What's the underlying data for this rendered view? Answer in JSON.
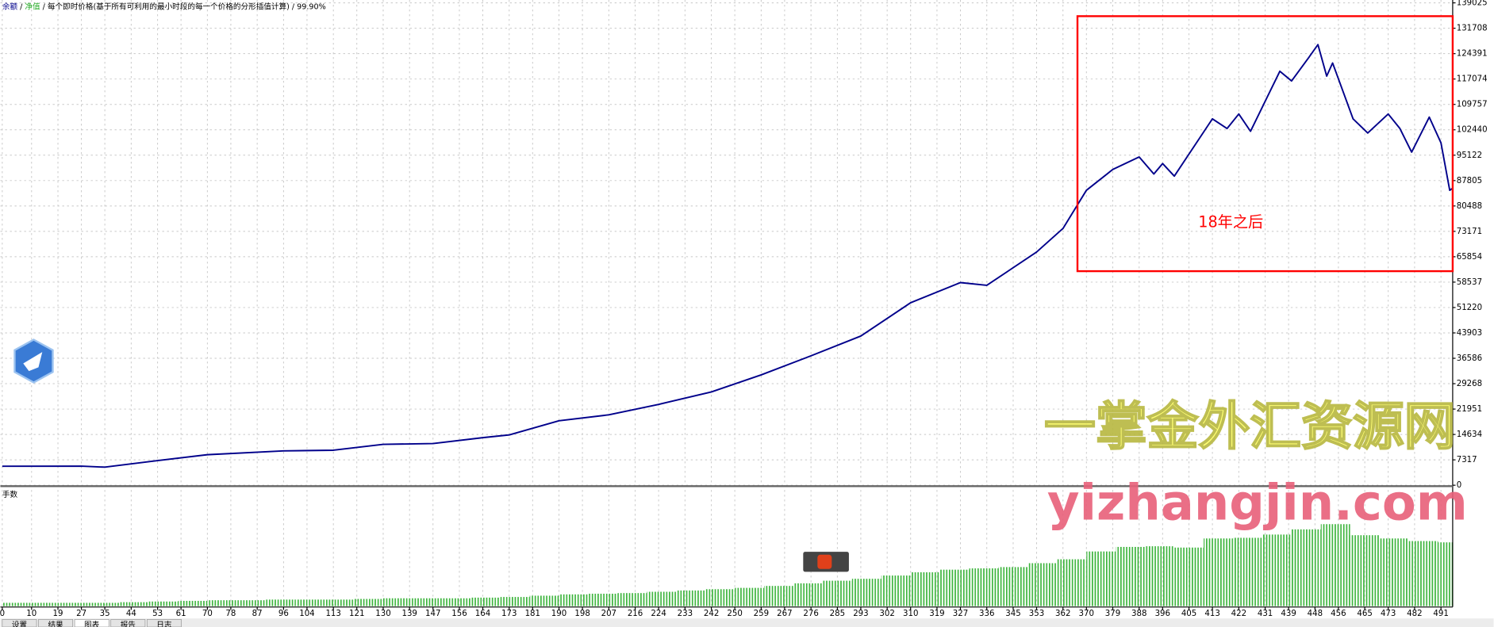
{
  "header": {
    "labels": [
      "余额",
      "净值"
    ],
    "separator": " / ",
    "subtitle": "每个即时价格(基于所有可利用的最小时段的每一个价格的分形插值计算)",
    "quality": "99.90%"
  },
  "watermark": [
    "一掌金外汇资源网",
    "yizhangjin.com"
  ],
  "tabs": [
    "设置",
    "结果",
    "图表",
    "报告",
    "日志"
  ],
  "chart_data": [
    {
      "type": "line",
      "series": [
        {
          "name": "余额",
          "color": "#00008b",
          "x": [
            0,
            27,
            35,
            53,
            70,
            96,
            113,
            130,
            147,
            164,
            173,
            190,
            207,
            224,
            242,
            259,
            276,
            293,
            310,
            327,
            336,
            353,
            362,
            370,
            379,
            388,
            393,
            396,
            400,
            413,
            418,
            422,
            426,
            436,
            440,
            446,
            449,
            452,
            454,
            461,
            466,
            473,
            477,
            481,
            487,
            491,
            494,
            495
          ],
          "values": [
            5484,
            5500,
            5200,
            7100,
            8800,
            9900,
            10100,
            11800,
            12000,
            13700,
            14500,
            18600,
            20300,
            23300,
            26900,
            31800,
            37300,
            43000,
            52600,
            58400,
            57600,
            67200,
            74000,
            85000,
            91000,
            94600,
            89700,
            92700,
            89100,
            105600,
            102800,
            107000,
            102000,
            119300,
            116500,
            123400,
            127000,
            117900,
            121700,
            105600,
            101500,
            107000,
            102800,
            96000,
            106100,
            98700,
            85000,
            85600
          ]
        }
      ],
      "xlim": [
        0,
        495
      ],
      "xticks": [
        0,
        10,
        19,
        27,
        35,
        44,
        53,
        61,
        70,
        78,
        87,
        96,
        104,
        113,
        121,
        130,
        139,
        147,
        156,
        164,
        173,
        181,
        190,
        198,
        207,
        216,
        224,
        233,
        242,
        250,
        259,
        267,
        276,
        285,
        293,
        302,
        310,
        319,
        327,
        336,
        345,
        353,
        362,
        370,
        379,
        388,
        396,
        405,
        413,
        422,
        431,
        439,
        448,
        456,
        465,
        473,
        482,
        491
      ],
      "ylim": [
        0,
        139025
      ],
      "yticks": [
        0,
        7317,
        14634,
        21951,
        29268,
        36586,
        43903,
        51220,
        58537,
        65854,
        73171,
        80488,
        87805,
        95122,
        102440,
        109757,
        117074,
        124391,
        131708,
        139025
      ],
      "grid": true,
      "annotation": "18年之后"
    },
    {
      "type": "bar",
      "title": "手数",
      "color": "#3cb43c",
      "x": [
        0,
        10,
        20,
        30,
        40,
        50,
        60,
        70,
        80,
        90,
        100,
        110,
        120,
        130,
        140,
        150,
        160,
        170,
        180,
        190,
        200,
        210,
        220,
        230,
        240,
        250,
        260,
        270,
        280,
        290,
        300,
        310,
        320,
        330,
        340,
        350,
        360,
        370,
        380,
        390,
        400,
        410,
        420,
        430,
        440,
        450,
        460,
        470,
        480,
        490
      ],
      "values": [
        0.5,
        0.5,
        0.5,
        0.5,
        0.6,
        0.7,
        0.8,
        0.9,
        0.9,
        1.0,
        1.0,
        1.0,
        1.1,
        1.2,
        1.2,
        1.2,
        1.3,
        1.4,
        1.6,
        1.8,
        1.9,
        2.0,
        2.2,
        2.4,
        2.6,
        2.8,
        3.1,
        3.5,
        3.9,
        4.2,
        4.7,
        5.2,
        5.6,
        5.8,
        6.0,
        6.6,
        7.2,
        8.4,
        9.1,
        9.2,
        9.0,
        10.4,
        10.5,
        11.0,
        11.8,
        12.6,
        10.9,
        10.4,
        10.0,
        9.8
      ],
      "ylim": [
        0,
        18
      ]
    }
  ]
}
